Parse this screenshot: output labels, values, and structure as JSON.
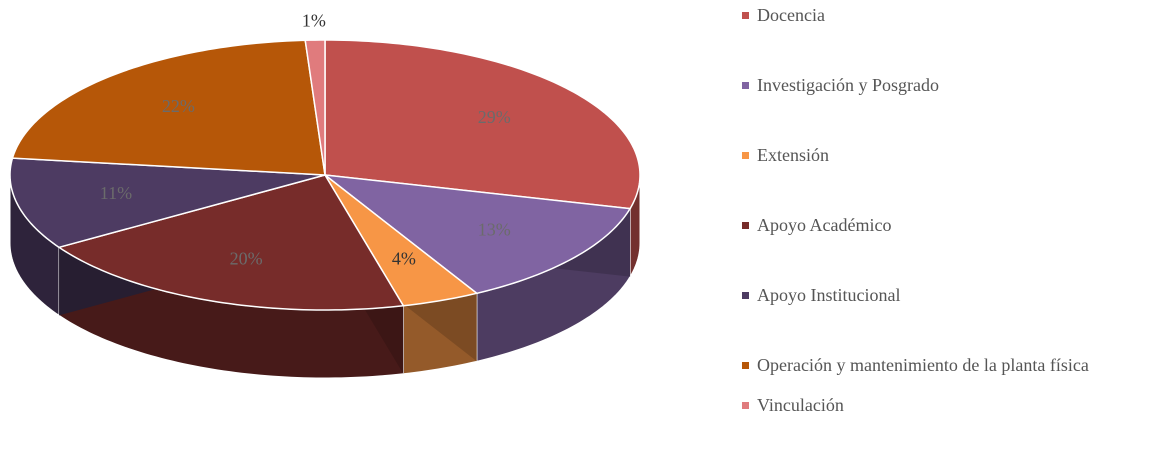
{
  "chart_data": {
    "type": "pie",
    "categories": [
      "Docencia",
      "Investigación y Posgrado",
      "Extensión",
      "Apoyo Académico",
      "Apoyo Institucional",
      "Operación y mantenimiento de la planta física",
      "Vinculación"
    ],
    "values": [
      29,
      13,
      4,
      20,
      11,
      22,
      1
    ],
    "value_labels": [
      "29%",
      "13%",
      "4%",
      "20%",
      "11%",
      "22%",
      "1%"
    ],
    "colors": [
      "#c0504d",
      "#8064a2",
      "#f79646",
      "#772c2a",
      "#4d3b62",
      "#b65708",
      "#e07b7d"
    ],
    "legend": "right"
  }
}
